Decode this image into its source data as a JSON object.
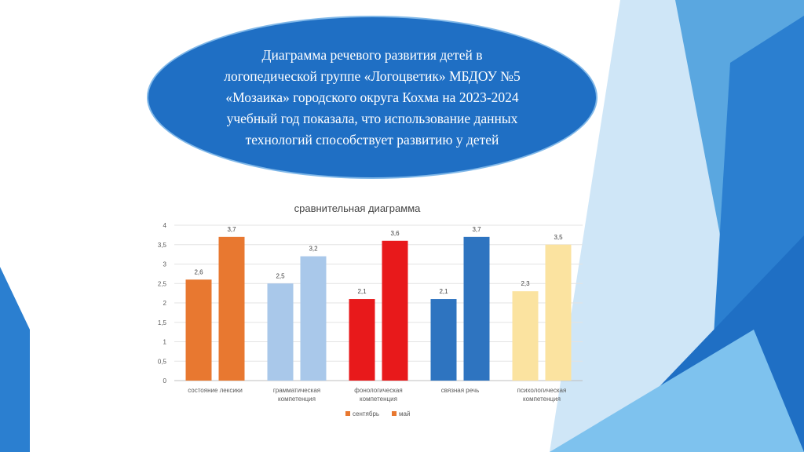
{
  "slide": {
    "title": "Диаграмма речевого развития детей в логопедической группе «Логоцветик» МБДОУ №5 «Мозаика» городского округа Кохма на 2023-2024 учебный год показала, что использование данных технологий способствует развитию у детей",
    "colors": {
      "ellipse": "#1f6fc4",
      "deco_blue": "#2b7fd0",
      "deco_light": "#a9d3f2"
    }
  },
  "chart_data": {
    "type": "bar",
    "title": "сравнительная диаграмма",
    "categories": [
      [
        "состояние лексики"
      ],
      [
        "грамматическая",
        "компетенция"
      ],
      [
        "фонологическая",
        "компетенция"
      ],
      [
        "связная речь"
      ],
      [
        "психологическая",
        "компетенция"
      ]
    ],
    "series": [
      {
        "name": "сентябрь",
        "values": [
          2.6,
          2.5,
          2.1,
          2.1,
          2.3
        ]
      },
      {
        "name": "май",
        "values": [
          3.7,
          3.2,
          3.6,
          3.7,
          3.5
        ]
      }
    ],
    "data_labels": [
      [
        "2,6",
        "2,5",
        "2,1",
        "2,1",
        "2,3"
      ],
      [
        "3,7",
        "3,2",
        "3,6",
        "3,7",
        "3,5"
      ]
    ],
    "bar_colors": [
      [
        "#e87830",
        "#a9c8ea",
        "#e8191b",
        "#2e74c0",
        "#fbe3a0"
      ],
      [
        "#e87830",
        "#a9c8ea",
        "#e8191b",
        "#2e74c0",
        "#fbe3a0"
      ]
    ],
    "legend_colors": [
      "#e87830",
      "#e87830"
    ],
    "ylim": [
      0,
      4
    ],
    "yticks": [
      "0",
      "0,5",
      "1",
      "1,5",
      "2",
      "2,5",
      "3",
      "3,5",
      "4"
    ],
    "grid": true,
    "legend": "bottom"
  }
}
